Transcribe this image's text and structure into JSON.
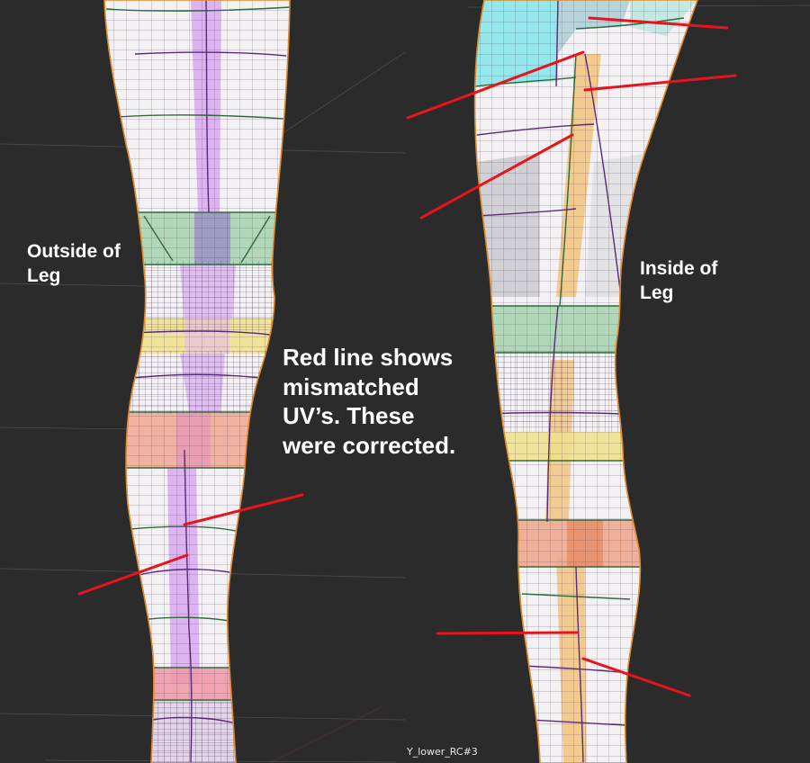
{
  "viewport": {
    "background": "#2b2b2b",
    "object_name": "Y_lower_RC#3"
  },
  "annotations": {
    "outside_label": "Outside of\nLeg",
    "inside_label": "Inside of\nLeg",
    "note": "Red line shows\nmismatched\nUV’s.  These\nwere corrected."
  },
  "colors": {
    "mismatch_line": "#e8131b",
    "mesh_wire": "#2f6b3a",
    "seam_wire": "#5a2a7a",
    "silhouette": "#e08a28",
    "island_purple": "#d8a8f0",
    "island_green": "#a8d4b0",
    "island_yellow": "#f0e08a",
    "island_salmon": "#f0a890",
    "island_orange": "#f2c888",
    "island_cyan": "#8ee6ea",
    "island_pink": "#f09aa8",
    "skin_white": "#f3f1f4"
  }
}
